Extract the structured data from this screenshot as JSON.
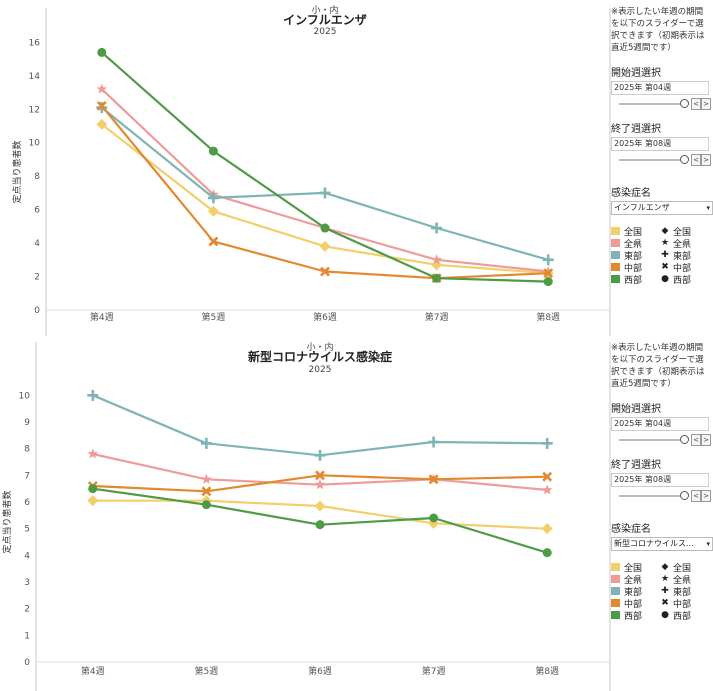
{
  "chart_data": [
    {
      "type": "line",
      "title_top": "小・内",
      "title": "インフルエンザ",
      "subtitle": "2025",
      "ylabel": "定点当り患者数",
      "xlabel": "",
      "categories": [
        "第4週",
        "第5週",
        "第6週",
        "第7週",
        "第8週"
      ],
      "ylim": [
        0,
        16.5
      ],
      "yticks": [
        0,
        2,
        4,
        6,
        8,
        10,
        12,
        14,
        16
      ],
      "series": [
        {
          "name": "全国",
          "color": "#f1cf6a",
          "marker": "diamond",
          "values": [
            11.1,
            5.9,
            3.8,
            2.7,
            2.2
          ]
        },
        {
          "name": "全県",
          "color": "#ef9b97",
          "marker": "star",
          "values": [
            13.2,
            6.9,
            4.9,
            3.0,
            2.3
          ]
        },
        {
          "name": "東部",
          "color": "#7fb4b6",
          "marker": "plus",
          "values": [
            12.1,
            6.7,
            7.0,
            4.9,
            3.0
          ]
        },
        {
          "name": "中部",
          "color": "#e2892f",
          "marker": "cross",
          "values": [
            12.2,
            4.1,
            2.3,
            1.9,
            2.2
          ]
        },
        {
          "name": "西部",
          "color": "#4f9b45",
          "marker": "circle",
          "values": [
            15.4,
            9.5,
            4.9,
            1.9,
            1.7
          ]
        }
      ]
    },
    {
      "type": "line",
      "title_top": "小・内",
      "title": "新型コロナウイルス感染症",
      "subtitle": "2025",
      "ylabel": "定点当り患者数",
      "xlabel": "",
      "categories": [
        "第4週",
        "第5週",
        "第6週",
        "第7週",
        "第8週"
      ],
      "ylim": [
        0,
        10.5
      ],
      "yticks": [
        0,
        1,
        2,
        3,
        4,
        5,
        6,
        7,
        8,
        9,
        10
      ],
      "series": [
        {
          "name": "全国",
          "color": "#f1cf6a",
          "marker": "diamond",
          "values": [
            6.05,
            6.05,
            5.85,
            5.2,
            5.0
          ]
        },
        {
          "name": "全県",
          "color": "#ef9b97",
          "marker": "star",
          "values": [
            7.8,
            6.85,
            6.65,
            6.85,
            6.45
          ]
        },
        {
          "name": "東部",
          "color": "#7fb4b6",
          "marker": "plus",
          "values": [
            10.0,
            8.2,
            7.75,
            8.25,
            8.2
          ]
        },
        {
          "name": "中部",
          "color": "#e2892f",
          "marker": "cross",
          "values": [
            6.6,
            6.4,
            7.0,
            6.85,
            6.95
          ]
        },
        {
          "name": "西部",
          "color": "#4f9b45",
          "marker": "circle",
          "values": [
            6.5,
            5.9,
            5.15,
            5.4,
            4.1
          ]
        }
      ]
    }
  ],
  "sidebar": [
    {
      "note": [
        "※表示したい年週の期間",
        "を以下のスライダーで選",
        "択できます（初期表示は",
        "直近5週間です）"
      ],
      "start_label": "開始週選択",
      "start_value": "2025年 第04週",
      "end_label": "終了週選択",
      "end_value": "2025年 第08週",
      "disease_label": "感染症名",
      "disease_value": "インフルエンザ"
    },
    {
      "note": [
        "※表示したい年週の期間",
        "を以下のスライダーで選",
        "択できます（初期表示は",
        "直近5週間です）"
      ],
      "start_label": "開始週選択",
      "start_value": "2025年 第04週",
      "end_label": "終了週選択",
      "end_value": "2025年 第08週",
      "disease_label": "感染症名",
      "disease_value": "新型コロナウイルス..."
    }
  ],
  "legend": {
    "items": [
      "全国",
      "全県",
      "東部",
      "中部",
      "西部"
    ],
    "colors": [
      "#f1cf6a",
      "#ef9b97",
      "#7fb4b6",
      "#e2892f",
      "#4f9b45"
    ],
    "shape_glyphs": [
      "◆",
      "★",
      "✚",
      "✖",
      "●"
    ]
  },
  "slider_buttons": {
    "prev": "<",
    "next": ">"
  },
  "dropdown_arrow": "▾"
}
